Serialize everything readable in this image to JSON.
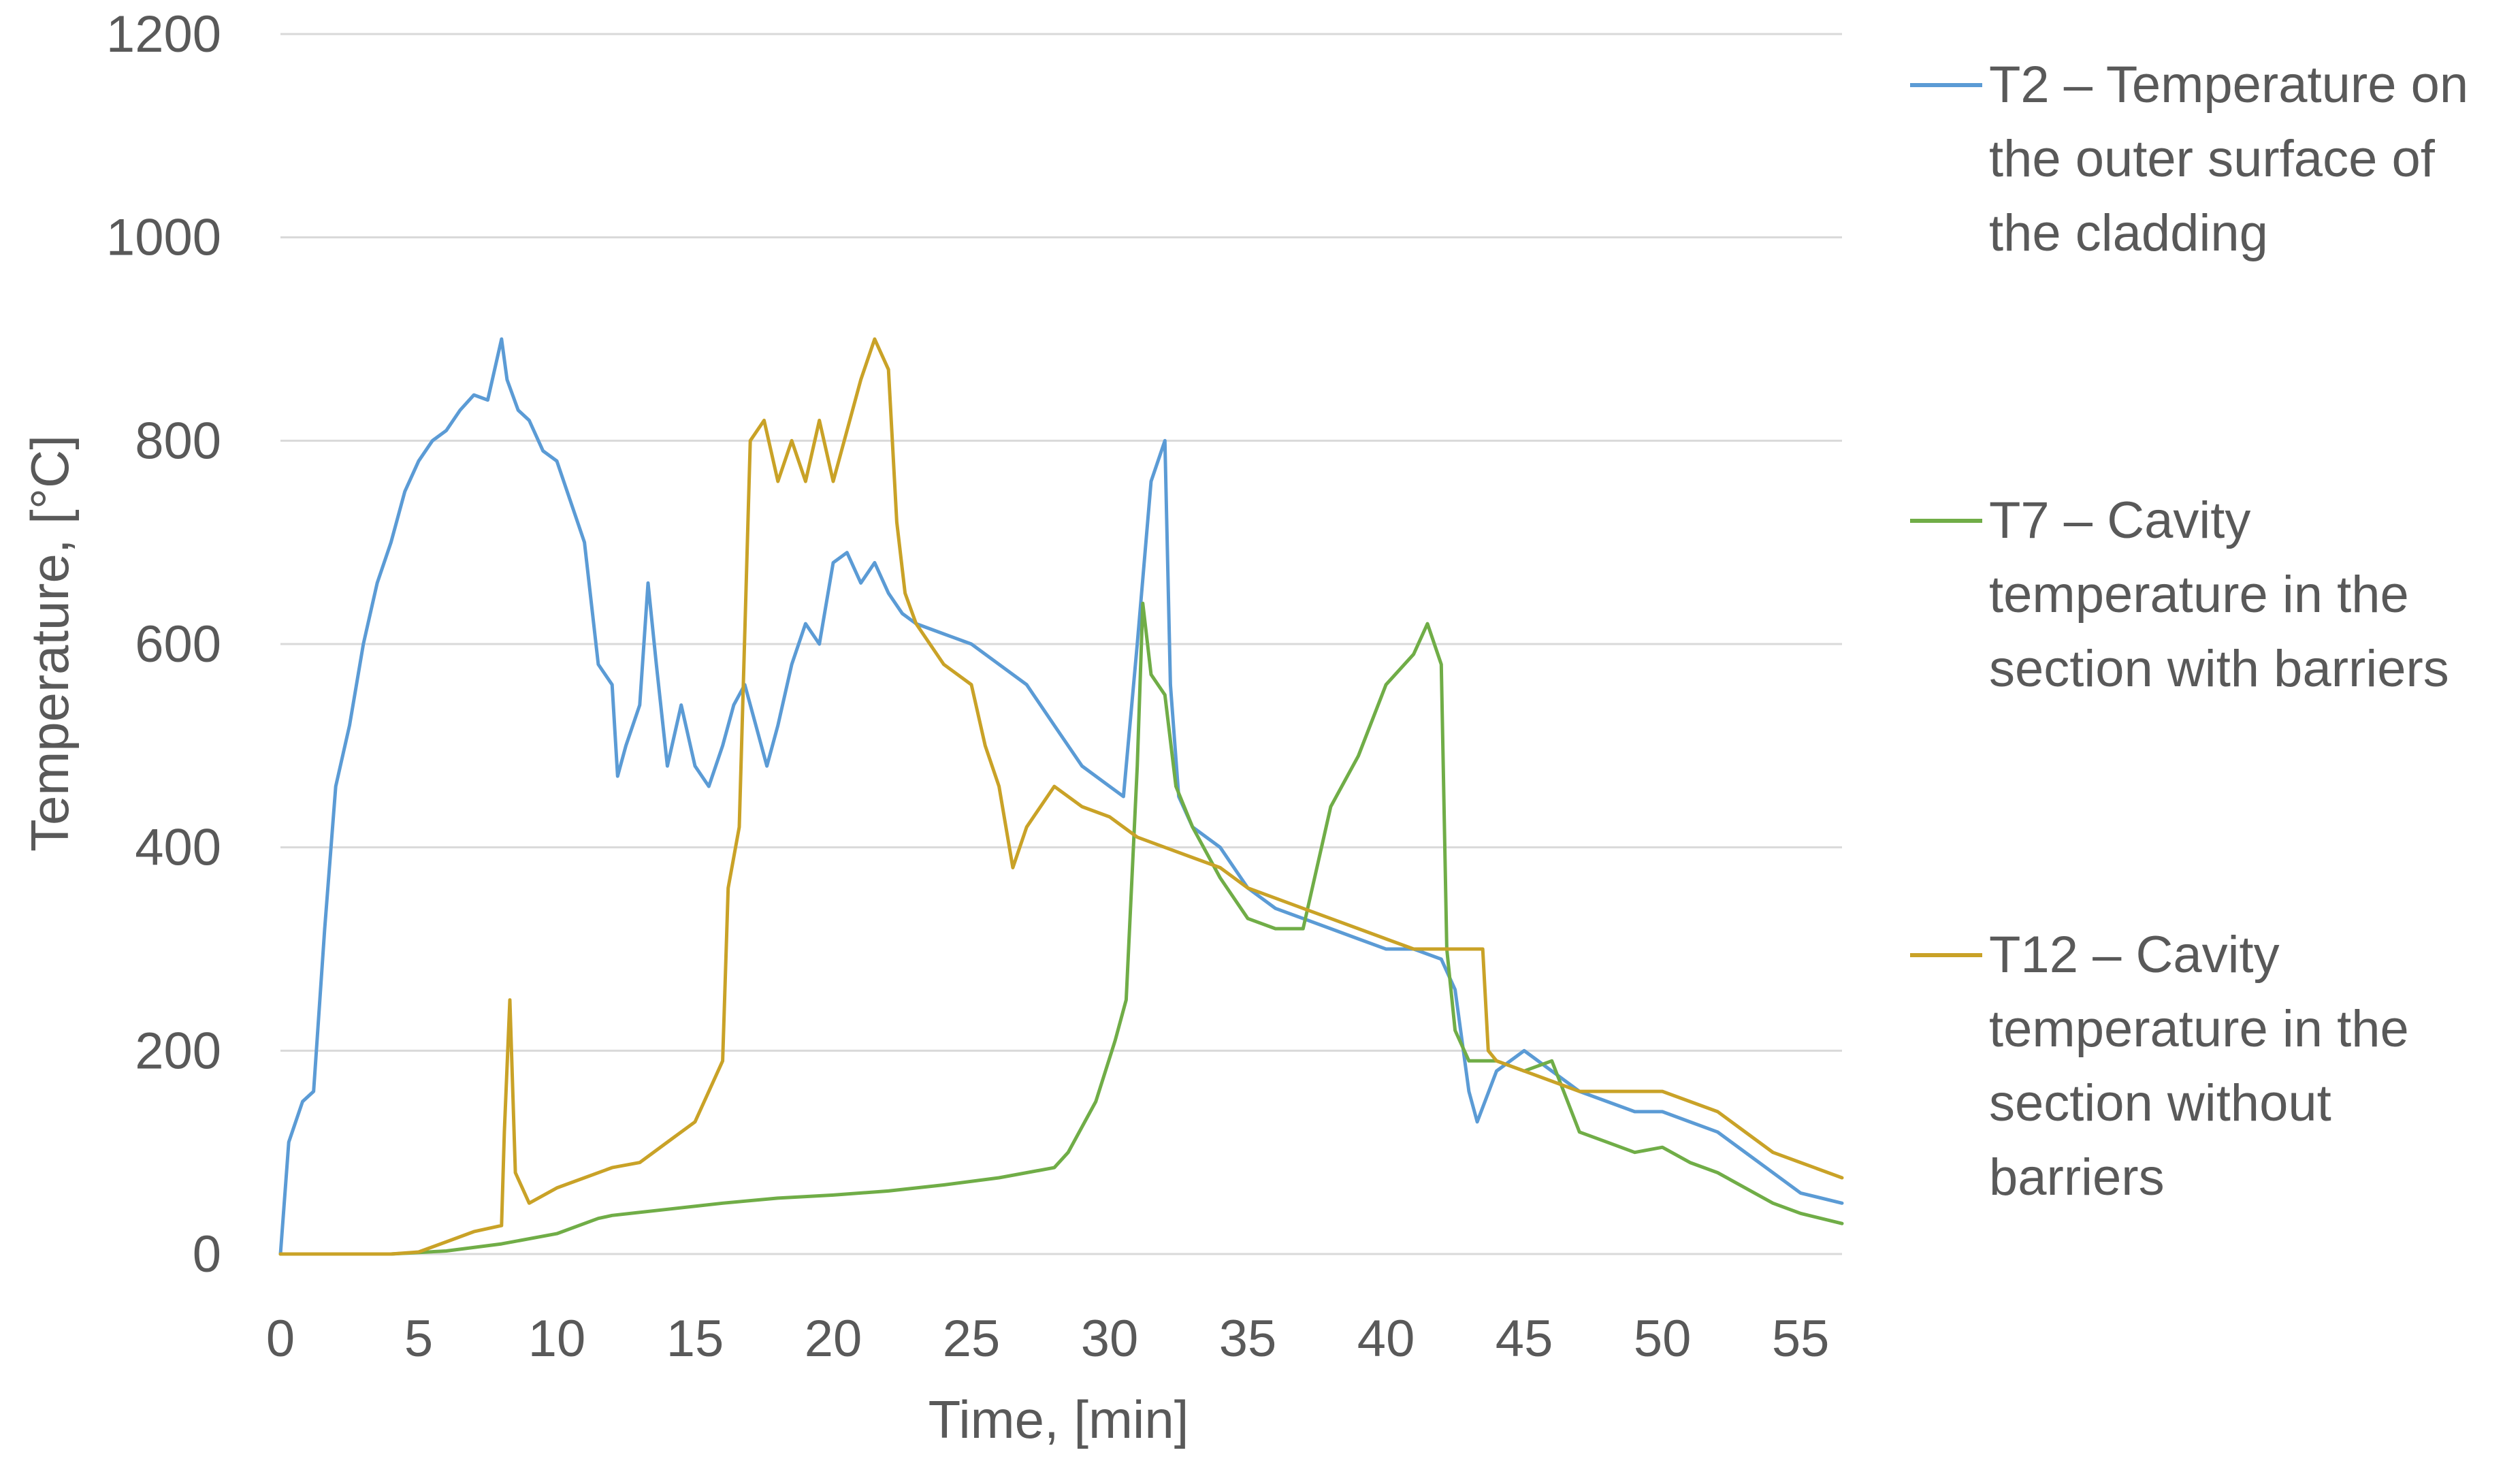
{
  "chart_data": {
    "type": "line",
    "title": "",
    "xlabel": "Time, [min]",
    "ylabel": "Temperature, [°C]",
    "xlim": [
      0,
      56.5
    ],
    "ylim": [
      0,
      1200
    ],
    "x_ticks": [
      "0",
      "5",
      "10",
      "15",
      "20",
      "25",
      "30",
      "35",
      "40",
      "45",
      "50",
      "55"
    ],
    "y_ticks": [
      "0",
      "200",
      "400",
      "600",
      "800",
      "1000",
      "1200"
    ],
    "grid": true,
    "legend_position": "right",
    "series": [
      {
        "name": "T2 – Temperature on the outer surface of the cladding",
        "legend_lines": [
          "T2 – Temperature on",
          "the outer surface of",
          "the cladding"
        ],
        "color": "#5b9bd5",
        "points": [
          [
            0,
            0
          ],
          [
            0.3,
            110
          ],
          [
            0.8,
            150
          ],
          [
            1.2,
            160
          ],
          [
            1.6,
            320
          ],
          [
            2,
            460
          ],
          [
            2.5,
            520
          ],
          [
            3,
            600
          ],
          [
            3.5,
            660
          ],
          [
            4,
            700
          ],
          [
            4.5,
            750
          ],
          [
            5,
            780
          ],
          [
            5.5,
            800
          ],
          [
            6,
            810
          ],
          [
            6.5,
            830
          ],
          [
            7,
            845
          ],
          [
            7.5,
            840
          ],
          [
            8,
            900
          ],
          [
            8.2,
            860
          ],
          [
            8.6,
            830
          ],
          [
            9,
            820
          ],
          [
            9.5,
            790
          ],
          [
            10,
            780
          ],
          [
            10.5,
            740
          ],
          [
            11,
            700
          ],
          [
            11.5,
            580
          ],
          [
            12,
            560
          ],
          [
            12.2,
            470
          ],
          [
            12.5,
            500
          ],
          [
            13,
            540
          ],
          [
            13.3,
            660
          ],
          [
            13.6,
            580
          ],
          [
            14,
            480
          ],
          [
            14.5,
            540
          ],
          [
            15,
            480
          ],
          [
            15.5,
            460
          ],
          [
            16,
            500
          ],
          [
            16.4,
            540
          ],
          [
            16.8,
            560
          ],
          [
            17.2,
            520
          ],
          [
            17.6,
            480
          ],
          [
            18,
            520
          ],
          [
            18.5,
            580
          ],
          [
            19,
            620
          ],
          [
            19.5,
            600
          ],
          [
            20,
            680
          ],
          [
            20.5,
            690
          ],
          [
            21,
            660
          ],
          [
            21.5,
            680
          ],
          [
            22,
            650
          ],
          [
            22.5,
            630
          ],
          [
            23,
            620
          ],
          [
            24,
            610
          ],
          [
            25,
            600
          ],
          [
            26,
            580
          ],
          [
            27,
            560
          ],
          [
            28,
            520
          ],
          [
            29,
            480
          ],
          [
            30,
            460
          ],
          [
            30.5,
            450
          ],
          [
            31,
            600
          ],
          [
            31.5,
            760
          ],
          [
            32,
            800
          ],
          [
            32.2,
            560
          ],
          [
            32.5,
            450
          ],
          [
            33,
            420
          ],
          [
            34,
            400
          ],
          [
            35,
            360
          ],
          [
            36,
            340
          ],
          [
            37,
            330
          ],
          [
            38,
            320
          ],
          [
            39,
            310
          ],
          [
            40,
            300
          ],
          [
            41,
            300
          ],
          [
            42,
            290
          ],
          [
            42.5,
            260
          ],
          [
            43,
            160
          ],
          [
            43.3,
            130
          ],
          [
            44,
            180
          ],
          [
            45,
            200
          ],
          [
            46,
            180
          ],
          [
            47,
            160
          ],
          [
            48,
            150
          ],
          [
            49,
            140
          ],
          [
            50,
            140
          ],
          [
            51,
            130
          ],
          [
            52,
            120
          ],
          [
            53,
            100
          ],
          [
            54,
            80
          ],
          [
            55,
            60
          ],
          [
            56.5,
            50
          ]
        ]
      },
      {
        "name": "T7 – Cavity temperature in the section with barriers",
        "legend_lines": [
          "T7 – Cavity",
          "temperature in the",
          "section with barriers"
        ],
        "color": "#70ad47",
        "points": [
          [
            0,
            0
          ],
          [
            4,
            0
          ],
          [
            6,
            3
          ],
          [
            8,
            10
          ],
          [
            10,
            20
          ],
          [
            11.5,
            35
          ],
          [
            12,
            38
          ],
          [
            14,
            44
          ],
          [
            16,
            50
          ],
          [
            18,
            55
          ],
          [
            20,
            58
          ],
          [
            22,
            62
          ],
          [
            24,
            68
          ],
          [
            26,
            75
          ],
          [
            28,
            85
          ],
          [
            28.5,
            100
          ],
          [
            29.5,
            150
          ],
          [
            30.2,
            210
          ],
          [
            30.6,
            250
          ],
          [
            31,
            480
          ],
          [
            31.2,
            640
          ],
          [
            31.5,
            570
          ],
          [
            32,
            550
          ],
          [
            32.4,
            460
          ],
          [
            33,
            420
          ],
          [
            34,
            370
          ],
          [
            35,
            330
          ],
          [
            36,
            320
          ],
          [
            37,
            320
          ],
          [
            37.5,
            380
          ],
          [
            38,
            440
          ],
          [
            39,
            490
          ],
          [
            40,
            560
          ],
          [
            41,
            590
          ],
          [
            41.5,
            620
          ],
          [
            42,
            580
          ],
          [
            42.2,
            300
          ],
          [
            42.5,
            220
          ],
          [
            43,
            190
          ],
          [
            44,
            190
          ],
          [
            45,
            180
          ],
          [
            46,
            190
          ],
          [
            47,
            120
          ],
          [
            48,
            110
          ],
          [
            49,
            100
          ],
          [
            50,
            105
          ],
          [
            51,
            90
          ],
          [
            52,
            80
          ],
          [
            53,
            65
          ],
          [
            54,
            50
          ],
          [
            55,
            40
          ],
          [
            56.5,
            30
          ]
        ]
      },
      {
        "name": "T12 – Cavity temperature in the section without barriers",
        "legend_lines": [
          "T12 – Cavity",
          "temperature in the",
          "section without",
          "barriers"
        ],
        "color": "#c9a227",
        "points": [
          [
            0,
            0
          ],
          [
            3,
            0
          ],
          [
            4,
            0
          ],
          [
            5,
            2
          ],
          [
            6,
            12
          ],
          [
            7,
            22
          ],
          [
            8,
            28
          ],
          [
            8.1,
            120
          ],
          [
            8.3,
            250
          ],
          [
            8.5,
            80
          ],
          [
            9,
            50
          ],
          [
            10,
            65
          ],
          [
            11,
            75
          ],
          [
            12,
            85
          ],
          [
            13,
            90
          ],
          [
            14,
            110
          ],
          [
            15,
            130
          ],
          [
            15.5,
            160
          ],
          [
            16,
            190
          ],
          [
            16.2,
            360
          ],
          [
            16.6,
            420
          ],
          [
            17,
            800
          ],
          [
            17.5,
            820
          ],
          [
            18,
            760
          ],
          [
            18.5,
            800
          ],
          [
            19,
            760
          ],
          [
            19.5,
            820
          ],
          [
            20,
            760
          ],
          [
            21,
            860
          ],
          [
            21.5,
            900
          ],
          [
            22,
            870
          ],
          [
            22.3,
            720
          ],
          [
            22.6,
            650
          ],
          [
            23,
            620
          ],
          [
            24,
            580
          ],
          [
            25,
            560
          ],
          [
            25.5,
            500
          ],
          [
            26,
            460
          ],
          [
            26.5,
            380
          ],
          [
            27,
            420
          ],
          [
            28,
            460
          ],
          [
            29,
            440
          ],
          [
            30,
            430
          ],
          [
            31,
            410
          ],
          [
            32,
            400
          ],
          [
            33,
            390
          ],
          [
            34,
            380
          ],
          [
            35,
            360
          ],
          [
            36,
            350
          ],
          [
            37,
            340
          ],
          [
            38,
            330
          ],
          [
            39,
            320
          ],
          [
            40,
            310
          ],
          [
            41,
            300
          ],
          [
            42,
            300
          ],
          [
            43,
            300
          ],
          [
            43.5,
            300
          ],
          [
            43.7,
            200
          ],
          [
            44,
            190
          ],
          [
            45,
            180
          ],
          [
            46,
            170
          ],
          [
            47,
            160
          ],
          [
            48,
            160
          ],
          [
            49,
            160
          ],
          [
            50,
            160
          ],
          [
            51,
            150
          ],
          [
            52,
            140
          ],
          [
            53,
            120
          ],
          [
            54,
            100
          ],
          [
            55,
            90
          ],
          [
            56.5,
            75
          ]
        ]
      }
    ]
  }
}
